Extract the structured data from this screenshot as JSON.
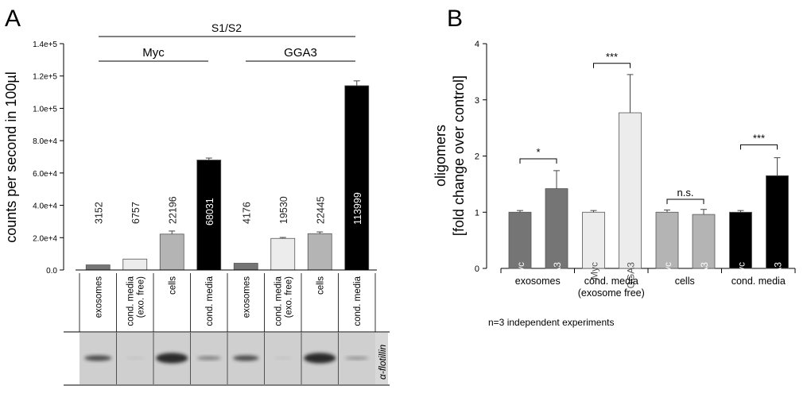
{
  "panel_a": {
    "letter": "A",
    "bracket_top": "S1/S2",
    "bracket_left": "Myc",
    "bracket_right": "GGA3",
    "blot_label": "α-flotillin"
  },
  "panel_b": {
    "letter": "B",
    "footnote": "n=3 independent experiments"
  },
  "colors": {
    "dark_gray": "#757575",
    "light_gray": "#ececec",
    "mid_gray": "#b4b4b4",
    "black": "#000000"
  },
  "chart_data": [
    {
      "type": "bar",
      "title": "",
      "xlabel": "",
      "ylabel": "counts per second in 100µl",
      "ylim": [
        0,
        140000
      ],
      "yticks": [
        0,
        20000,
        40000,
        60000,
        80000,
        100000,
        120000,
        140000
      ],
      "ytick_labels": [
        "0.0",
        "2.0e+4",
        "4.0e+4",
        "6.0e+4",
        "8.0e+4",
        "1.0e+5",
        "1.2e+5",
        "1.4e+5"
      ],
      "categories": [
        [
          "exosomes"
        ],
        [
          "cond. media",
          "(exo. free)"
        ],
        [
          "cells"
        ],
        [
          "cond. media"
        ],
        [
          "exosomes"
        ],
        [
          "cond. media",
          "(exo. free)"
        ],
        [
          "cells"
        ],
        [
          "cond. media"
        ]
      ],
      "values": [
        3152,
        6757,
        22196,
        68031,
        4176,
        19530,
        22445,
        113999
      ],
      "value_labels": [
        "3152",
        "6757",
        "22196",
        "68031",
        "4176",
        "19530",
        "22445",
        "113999"
      ],
      "errors": [
        0,
        0,
        1900,
        1200,
        0,
        600,
        1100,
        3000
      ],
      "bar_colors": [
        "dark_gray",
        "light_gray",
        "mid_gray",
        "black",
        "dark_gray",
        "light_gray",
        "mid_gray",
        "black"
      ],
      "groups": [
        "Myc",
        "GGA3"
      ]
    },
    {
      "type": "bar",
      "title": "",
      "xlabel": "",
      "ylabel": "oligomers",
      "ylabel_line2": "[fold change over control]",
      "ylim": [
        0,
        4
      ],
      "yticks": [
        0,
        1,
        2,
        3,
        4
      ],
      "ytick_labels": [
        "0",
        "1",
        "2",
        "3",
        "4"
      ],
      "categories": [
        [
          "exosomes"
        ],
        [
          "cond. media",
          "(exosome free)"
        ],
        [
          "cells"
        ],
        [
          "cond. media"
        ]
      ],
      "series": [
        {
          "name": "Myc",
          "values": [
            1.0,
            1.0,
            1.0,
            1.0
          ],
          "errors": [
            0.03,
            0.03,
            0.04,
            0.03
          ]
        },
        {
          "name": "GGA3",
          "values": [
            1.42,
            2.77,
            0.96,
            1.65
          ],
          "errors": [
            0.32,
            0.68,
            0.09,
            0.32
          ]
        }
      ],
      "series_colors": [
        "dark_gray",
        "light_gray",
        "mid_gray",
        "black"
      ],
      "significance": [
        "*",
        "***",
        "n.s.",
        "***"
      ]
    }
  ]
}
